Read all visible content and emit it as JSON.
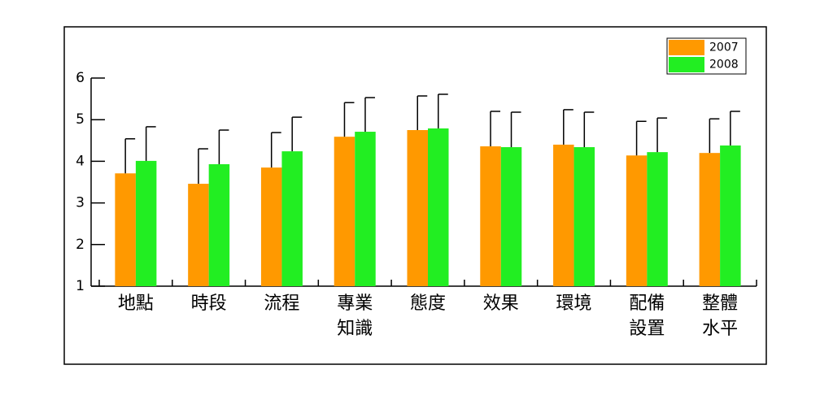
{
  "chart_data": {
    "type": "bar",
    "categories": [
      "地點",
      "時段",
      "流程",
      "專業知識",
      "態度",
      "效果",
      "環境",
      "配備設置",
      "整體水平"
    ],
    "series": [
      {
        "name": "2007",
        "color": "#ff9900",
        "values": [
          3.71,
          3.46,
          3.85,
          4.59,
          4.75,
          4.36,
          4.4,
          4.14,
          4.2
        ],
        "errors": [
          0.83,
          0.84,
          0.84,
          0.82,
          0.82,
          0.84,
          0.84,
          0.82,
          0.82
        ]
      },
      {
        "name": "2008",
        "color": "#22ee22",
        "values": [
          4.01,
          3.93,
          4.24,
          4.71,
          4.79,
          4.34,
          4.34,
          4.22,
          4.38
        ],
        "errors": [
          0.82,
          0.82,
          0.82,
          0.82,
          0.82,
          0.84,
          0.84,
          0.82,
          0.82
        ]
      }
    ],
    "ylim": [
      1,
      6
    ],
    "yticks": [
      1,
      2,
      3,
      4,
      5,
      6
    ],
    "legend": "upper right"
  }
}
